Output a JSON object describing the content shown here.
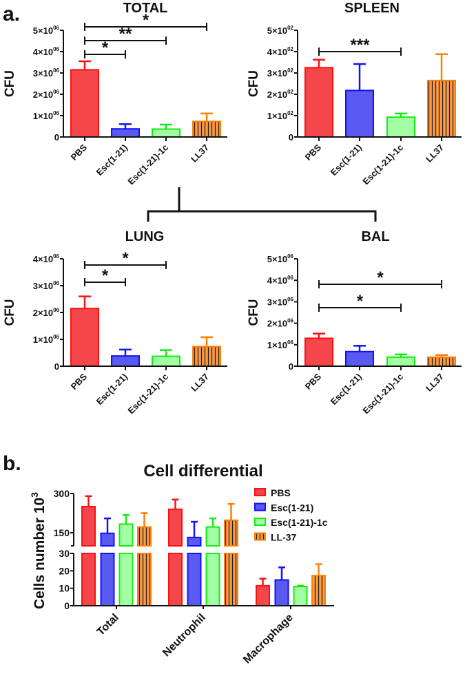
{
  "panel_labels": {
    "a": "a.",
    "b": "b."
  },
  "colors": {
    "PBS": {
      "fill": "#f5474b",
      "stroke": "#ff1010"
    },
    "Esc(1-21)": {
      "fill": "#5a5af2",
      "stroke": "#1010ff"
    },
    "Esc(1-21)-1c": {
      "fill": "#a3ffa3",
      "stroke": "#10ee10"
    },
    "LL37": {
      "fill": "#ff9a40",
      "stroke": "#ff7f00",
      "hatch": "#222222"
    }
  },
  "chart_data": [
    {
      "type": "bar",
      "title": "TOTAL",
      "ylabel": "CFU",
      "ylim": [
        0,
        5000000
      ],
      "yticks": [
        {
          "base": "0",
          "exp": ""
        },
        {
          "base": "1×10",
          "exp": "06"
        },
        {
          "base": "2×10",
          "exp": "06"
        },
        {
          "base": "3×10",
          "exp": "06"
        },
        {
          "base": "4×10",
          "exp": "06"
        },
        {
          "base": "5×10",
          "exp": "06"
        }
      ],
      "categories": [
        "PBS",
        "Esc(1-21)",
        "Esc(1-21)-1c",
        "LL37"
      ],
      "values": [
        3150000,
        380000,
        370000,
        730000
      ],
      "errors": [
        400000,
        220000,
        210000,
        370000
      ],
      "significance": [
        {
          "from": "PBS",
          "to": "Esc(1-21)",
          "label": "*"
        },
        {
          "from": "PBS",
          "to": "Esc(1-21)-1c",
          "label": "**"
        },
        {
          "from": "PBS",
          "to": "LL37",
          "label": "*"
        }
      ]
    },
    {
      "type": "bar",
      "title": "SPLEEN",
      "ylabel": "CFU",
      "ylim": [
        0,
        500
      ],
      "yticks": [
        {
          "base": "0",
          "exp": ""
        },
        {
          "base": "1×10",
          "exp": "02"
        },
        {
          "base": "2×10",
          "exp": "02"
        },
        {
          "base": "3×10",
          "exp": "02"
        },
        {
          "base": "4×10",
          "exp": "02"
        },
        {
          "base": "5×10",
          "exp": "02"
        }
      ],
      "categories": [
        "PBS",
        "Esc(1-21)",
        "Esc(1-21)-1c",
        "LL37"
      ],
      "values": [
        325,
        218,
        93,
        265
      ],
      "errors": [
        37,
        124,
        17,
        123
      ],
      "significance": [
        {
          "from": "PBS",
          "to": "Esc(1-21)-1c",
          "label": "***"
        }
      ]
    },
    {
      "type": "bar",
      "title": "LUNG",
      "ylabel": "CFU",
      "ylim": [
        0,
        4000000
      ],
      "yticks": [
        {
          "base": "0",
          "exp": ""
        },
        {
          "base": "1×10",
          "exp": "06"
        },
        {
          "base": "2×10",
          "exp": "06"
        },
        {
          "base": "3×10",
          "exp": "06"
        },
        {
          "base": "4×10",
          "exp": "06"
        }
      ],
      "categories": [
        "PBS",
        "Esc(1-21)",
        "Esc(1-21)-1c",
        "LL37"
      ],
      "values": [
        2150000,
        380000,
        370000,
        730000
      ],
      "errors": [
        450000,
        240000,
        230000,
        350000
      ],
      "significance": [
        {
          "from": "PBS",
          "to": "Esc(1-21)",
          "label": "*"
        },
        {
          "from": "PBS",
          "to": "Esc(1-21)-1c",
          "label": "*"
        }
      ]
    },
    {
      "type": "bar",
      "title": "BAL",
      "ylabel": "CFU",
      "ylim": [
        0,
        5000000
      ],
      "yticks": [
        {
          "base": "0",
          "exp": ""
        },
        {
          "base": "1×10",
          "exp": "06"
        },
        {
          "base": "2×10",
          "exp": "06"
        },
        {
          "base": "3×10",
          "exp": "06"
        },
        {
          "base": "4×10",
          "exp": "06"
        },
        {
          "base": "5×10",
          "exp": "06"
        }
      ],
      "categories": [
        "PBS",
        "Esc(1-21)",
        "Esc(1-21)-1c",
        "LL37"
      ],
      "values": [
        1300000,
        680000,
        420000,
        420000
      ],
      "errors": [
        220000,
        270000,
        130000,
        100000
      ],
      "significance": [
        {
          "from": "PBS",
          "to": "Esc(1-21)-1c",
          "label": "*"
        },
        {
          "from": "PBS",
          "to": "LL37",
          "label": "*"
        }
      ]
    },
    {
      "type": "bar",
      "title": "Cell differential",
      "ylabel": "Cells number 10",
      "ylabel_sup": "3",
      "ylim_lower": [
        0,
        30
      ],
      "ylim_upper": [
        100,
        300
      ],
      "yticks_lower": [
        "0",
        "10",
        "20",
        "30"
      ],
      "yticks_upper": [
        "150",
        "300"
      ],
      "categories": [
        "Total",
        "Neutrophil",
        "Macrophage"
      ],
      "legend_position": "top-right",
      "series": [
        {
          "name": "PBS",
          "color_key": "PBS",
          "values": [
            250,
            240,
            11.5
          ],
          "errors": [
            40,
            37,
            4
          ]
        },
        {
          "name": "Esc(1-21)",
          "color_key": "Esc(1-21)",
          "values": [
            148,
            132,
            14.8
          ],
          "errors": [
            57,
            60,
            7.2
          ]
        },
        {
          "name": "Esc(1-21)-1c",
          "color_key": "Esc(1-21)-1c",
          "values": [
            183,
            172,
            11
          ],
          "errors": [
            35,
            33,
            0.5
          ]
        },
        {
          "name": "LL-37",
          "color_key": "LL37",
          "values": [
            172,
            198,
            17.3
          ],
          "errors": [
            53,
            62,
            6.5
          ]
        }
      ]
    }
  ]
}
